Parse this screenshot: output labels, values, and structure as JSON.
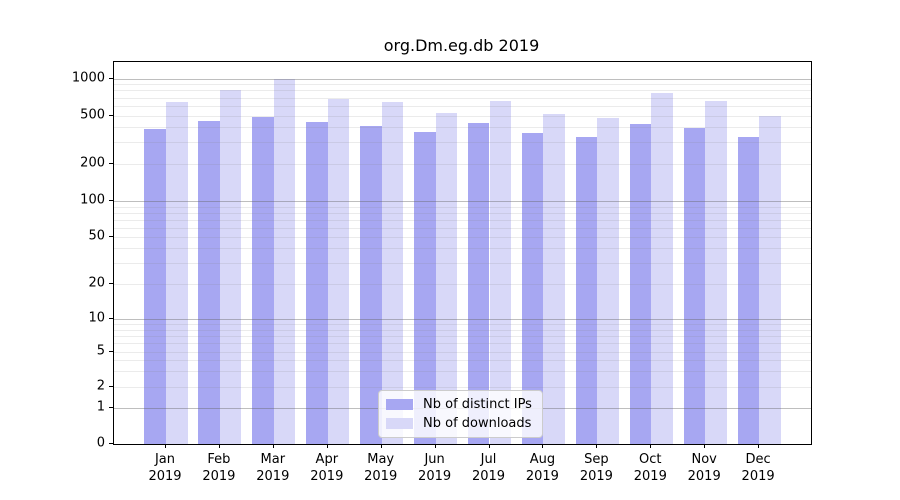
{
  "title": "org.Dm.eg.db 2019",
  "chart_data": {
    "type": "bar",
    "title": "org.Dm.eg.db 2019",
    "categories": [
      "Jan",
      "Feb",
      "Mar",
      "Apr",
      "May",
      "Jun",
      "Jul",
      "Aug",
      "Sep",
      "Oct",
      "Nov",
      "Dec"
    ],
    "category_year": "2019",
    "series": [
      {
        "name": "Nb of distinct IPs",
        "color": "#a7a7f2",
        "values": [
          385,
          450,
          490,
          445,
          410,
          365,
          435,
          355,
          330,
          425,
          395,
          335
        ]
      },
      {
        "name": "Nb of downloads",
        "color": "#d8d8f8",
        "values": [
          645,
          805,
          985,
          680,
          640,
          525,
          655,
          515,
          475,
          760,
          655,
          495
        ]
      }
    ],
    "yscale": "symlog",
    "yticks": [
      0,
      1,
      2,
      5,
      10,
      20,
      50,
      100,
      200,
      500,
      1000
    ],
    "ylim": [
      0,
      1100
    ],
    "xlabel": "",
    "ylabel": "",
    "grid": "both (major and minor horizontal gridlines, drawn above bars)",
    "legend_position": "lower center inside plot"
  }
}
